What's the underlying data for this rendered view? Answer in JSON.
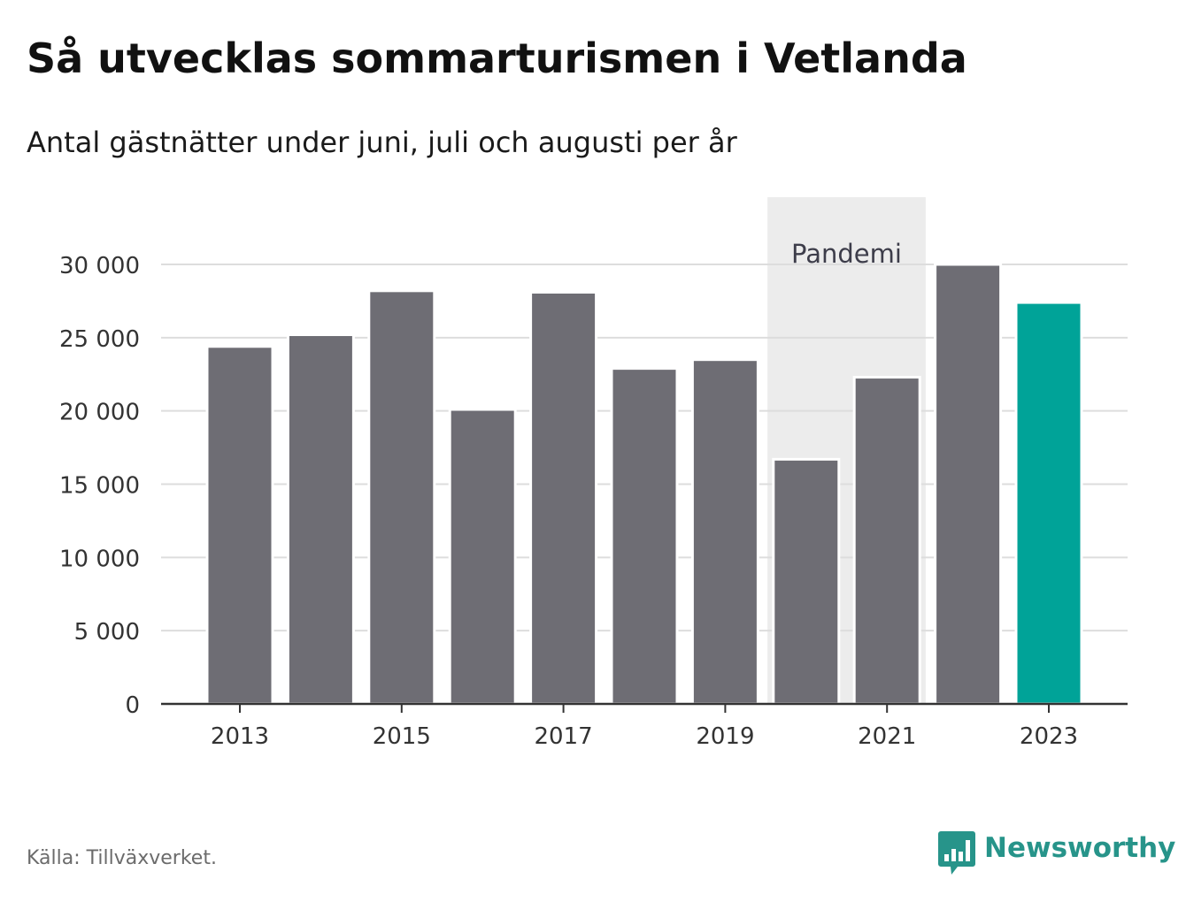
{
  "chart_data": {
    "type": "bar",
    "title": "Så utvecklas sommarturismen i Vetlanda",
    "subtitle": "Antal gästnätter under juni, juli och augusti per år",
    "categories": [
      "2013",
      "2014",
      "2015",
      "2016",
      "2017",
      "2018",
      "2019",
      "2020",
      "2021",
      "2022",
      "2023"
    ],
    "series": [
      {
        "values": [
          24400,
          25200,
          28200,
          20100,
          28100,
          22900,
          23500,
          16700,
          22300,
          30000,
          27400
        ]
      }
    ],
    "x_tick_labels": [
      "2013",
      "2015",
      "2017",
      "2019",
      "2021",
      "2023"
    ],
    "y_ticks": [
      0,
      5000,
      10000,
      15000,
      20000,
      25000,
      30000
    ],
    "y_tick_labels": [
      "0",
      "5 000",
      "10 000",
      "15 000",
      "20 000",
      "25 000",
      "30 000"
    ],
    "ylim": [
      0,
      31000
    ],
    "xlabel": "",
    "ylabel": "",
    "grid": true,
    "bar_color": "#6e6d74",
    "highlight_category": "2023",
    "highlight_color": "#00a398",
    "annotations": [
      {
        "label": "Pandemi",
        "from": "2020",
        "to": "2021",
        "color": "#ececec"
      }
    ]
  },
  "footer": {
    "source": "Källa: Tillväxverket.",
    "brand": "Newsworthy",
    "brand_color": "#27948a",
    "brand_icon": "newsworthy-logo-icon"
  }
}
